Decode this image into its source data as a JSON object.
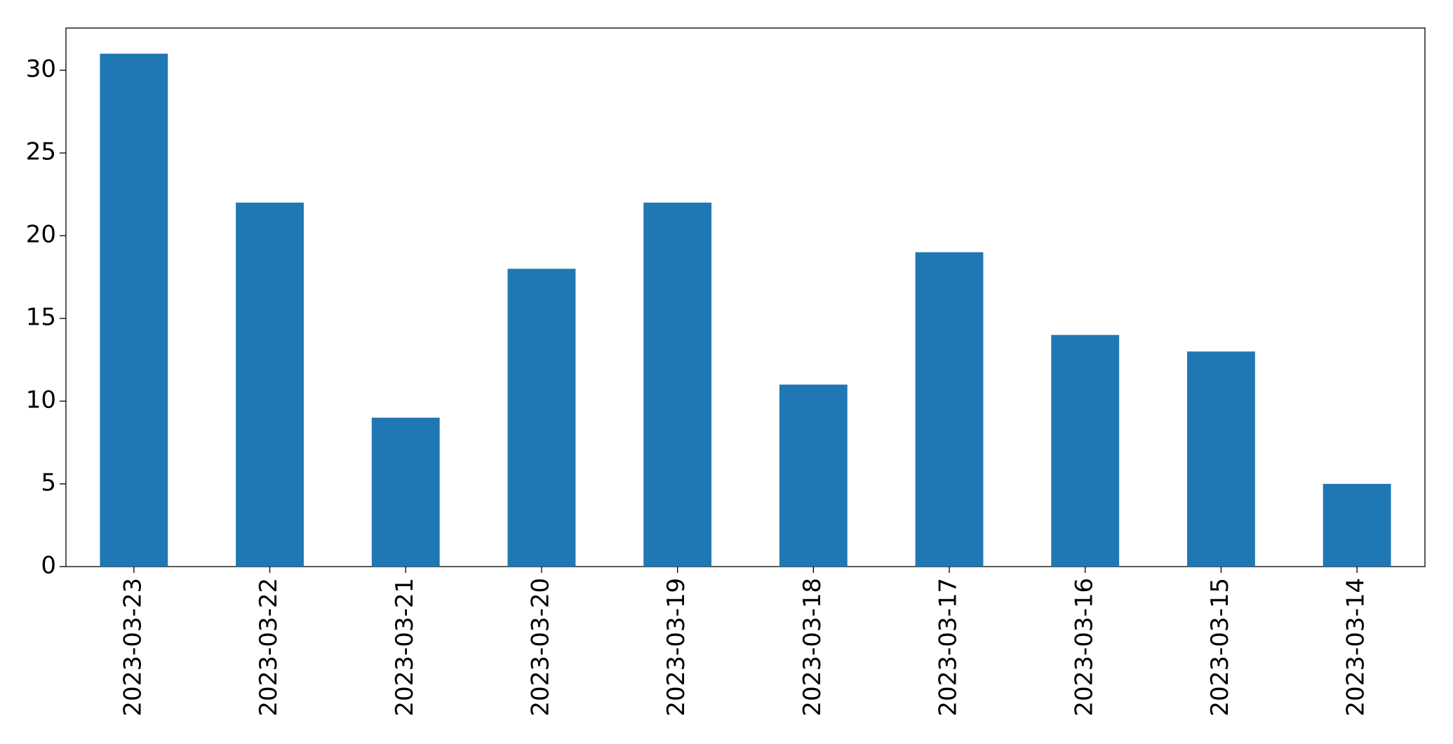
{
  "chart_data": {
    "type": "bar",
    "categories": [
      "2023-03-23",
      "2023-03-22",
      "2023-03-21",
      "2023-03-20",
      "2023-03-19",
      "2023-03-18",
      "2023-03-17",
      "2023-03-16",
      "2023-03-15",
      "2023-03-14"
    ],
    "values": [
      31,
      22,
      9,
      18,
      22,
      11,
      19,
      14,
      13,
      5
    ],
    "color": "#1f77b4",
    "ylim": [
      0,
      32.55
    ],
    "yticks": [
      0,
      5,
      10,
      15,
      20,
      25,
      30
    ],
    "grid": false
  }
}
